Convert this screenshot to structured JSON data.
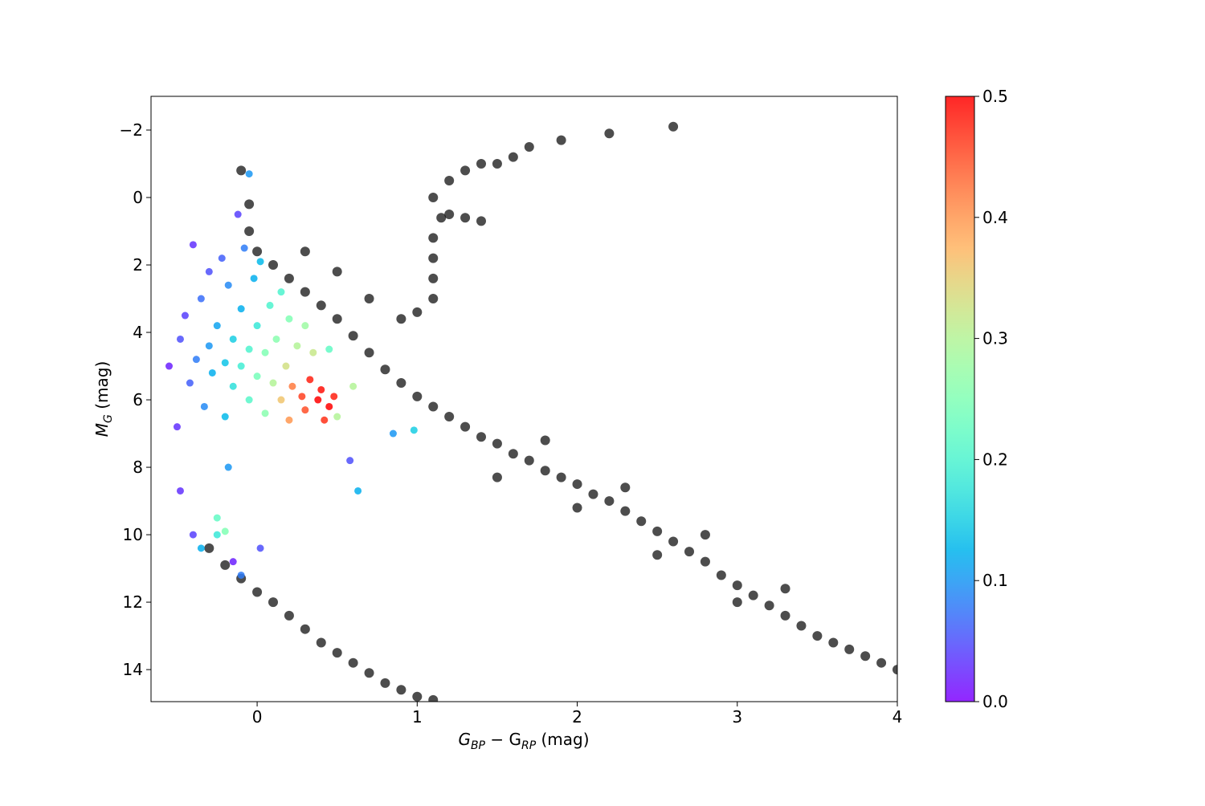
{
  "chart_data": {
    "type": "scatter",
    "xlabel": [
      "G",
      "BP",
      " − G",
      "RP",
      " (mag)"
    ],
    "ylabel": [
      "M",
      "G",
      " (mag)"
    ],
    "xlim": [
      -0.663,
      4
    ],
    "xticks": [
      0,
      1,
      2,
      3,
      4
    ],
    "ylim": [
      14.95,
      -3
    ],
    "yticks": [
      {
        "value": -2,
        "label": "−2"
      },
      0,
      2,
      4,
      6,
      8,
      10,
      12,
      14
    ],
    "colormap": "rainbow",
    "clim": [
      0,
      0.5
    ],
    "cticks": [
      {
        "value": 0,
        "label": "0.0"
      },
      0.1,
      0.2,
      0.3,
      0.4,
      0.5
    ],
    "series": [
      {
        "color": "#111111",
        "x": [
          -0.05,
          0,
          0.1,
          0.2,
          0.3,
          0.4,
          0.5,
          0.6,
          0.7,
          0.8,
          0.9,
          1.0,
          1.1,
          1.2,
          1.3,
          1.4,
          1.5,
          1.6,
          1.7,
          1.8,
          1.9,
          2.0,
          2.1,
          2.2,
          2.3,
          2.4,
          2.5,
          2.6,
          2.7,
          2.8,
          2.9,
          3.0,
          3.1,
          3.2,
          3.3,
          3.4,
          3.5,
          3.6,
          3.7,
          3.8,
          3.9,
          4.0,
          0.9,
          1.0,
          1.1,
          1.1,
          1.1,
          1.1,
          1.15,
          1.2,
          1.3,
          1.4,
          1.1,
          1.2,
          1.3,
          1.4,
          1.5,
          1.6,
          1.7,
          1.9,
          2.2,
          2.6,
          -0.1,
          -0.05,
          0.3,
          0.5,
          0.7,
          -0.3,
          -0.2,
          -0.1,
          0,
          0.1,
          0.2,
          0.3,
          0.4,
          0.5,
          0.6,
          0.7,
          0.8,
          0.9,
          1.0,
          1.1,
          1.5,
          2.0,
          2.5,
          3.0,
          1.8,
          2.3,
          2.8,
          3.3
        ],
        "y": [
          1.0,
          1.6,
          2.0,
          2.4,
          2.8,
          3.2,
          3.6,
          4.1,
          4.6,
          5.1,
          5.5,
          5.9,
          6.2,
          6.5,
          6.8,
          7.1,
          7.3,
          7.6,
          7.8,
          8.1,
          8.3,
          8.5,
          8.8,
          9.0,
          9.3,
          9.6,
          9.9,
          10.2,
          10.5,
          10.8,
          11.2,
          11.5,
          11.8,
          12.1,
          12.4,
          12.7,
          13.0,
          13.2,
          13.4,
          13.6,
          13.8,
          14.0,
          3.6,
          3.4,
          3.0,
          2.4,
          1.8,
          1.2,
          0.6,
          0.5,
          0.6,
          0.7,
          0,
          -0.5,
          -0.8,
          -1.0,
          -1.0,
          -1.2,
          -1.5,
          -1.7,
          -1.9,
          -2.1,
          -0.8,
          0.2,
          1.6,
          2.2,
          3.0,
          10.4,
          10.9,
          11.3,
          11.7,
          12.0,
          12.4,
          12.8,
          13.2,
          13.5,
          13.8,
          14.1,
          14.4,
          14.6,
          14.8,
          14.9,
          8.3,
          9.2,
          10.6,
          12.0,
          7.2,
          8.6,
          10.0,
          11.6
        ]
      },
      {
        "x": [
          -0.55,
          -0.5,
          -0.48,
          -0.45,
          -0.42,
          -0.4,
          -0.38,
          -0.35,
          -0.33,
          -0.3,
          -0.3,
          -0.28,
          -0.25,
          -0.22,
          -0.2,
          -0.2,
          -0.18,
          -0.15,
          -0.15,
          -0.12,
          -0.1,
          -0.1,
          -0.08,
          -0.05,
          -0.05,
          -0.05,
          -0.02,
          0,
          0,
          0.02,
          0.05,
          0.05,
          0.08,
          0.1,
          0.12,
          0.15,
          0.15,
          0.18,
          0.2,
          0.2,
          0.22,
          0.25,
          0.28,
          0.3,
          0.3,
          0.33,
          0.35,
          0.38,
          0.4,
          0.42,
          0.45,
          0.48,
          0.5,
          0.45,
          0.6,
          0.63,
          0.58,
          0.85,
          0.98,
          -0.18,
          -0.48,
          -0.4,
          -0.25,
          -0.2,
          -0.15,
          -0.1,
          0.02,
          -0.25,
          -0.35
        ],
        "y": [
          5.0,
          6.8,
          4.2,
          3.5,
          5.5,
          1.4,
          4.8,
          3.0,
          6.2,
          2.2,
          4.4,
          5.2,
          3.8,
          1.8,
          4.9,
          6.5,
          2.6,
          4.2,
          5.6,
          0.5,
          3.3,
          5.0,
          1.5,
          -0.7,
          4.5,
          6.0,
          2.4,
          3.8,
          5.3,
          1.9,
          4.6,
          6.4,
          3.2,
          5.5,
          4.2,
          2.8,
          6.0,
          5.0,
          3.6,
          6.6,
          5.6,
          4.4,
          5.9,
          3.8,
          6.3,
          5.4,
          4.6,
          6.0,
          5.7,
          6.6,
          6.2,
          5.9,
          6.5,
          4.5,
          5.6,
          8.7,
          7.8,
          7.0,
          6.9,
          8.0,
          8.7,
          10.0,
          10.0,
          9.9,
          10.8,
          11.2,
          10.4,
          9.5,
          10.4
        ],
        "c": [
          0.02,
          0.03,
          0.05,
          0.04,
          0.06,
          0.03,
          0.08,
          0.07,
          0.09,
          0.05,
          0.1,
          0.12,
          0.11,
          0.06,
          0.14,
          0.13,
          0.09,
          0.15,
          0.17,
          0.04,
          0.12,
          0.19,
          0.08,
          0.1,
          0.2,
          0.21,
          0.12,
          0.18,
          0.24,
          0.13,
          0.25,
          0.26,
          0.2,
          0.3,
          0.26,
          0.2,
          0.36,
          0.33,
          0.25,
          0.4,
          0.42,
          0.3,
          0.46,
          0.28,
          0.45,
          0.48,
          0.32,
          0.5,
          0.49,
          0.47,
          0.5,
          0.48,
          0.3,
          0.22,
          0.3,
          0.12,
          0.05,
          0.1,
          0.15,
          0.1,
          0.03,
          0.04,
          0.18,
          0.25,
          0.02,
          0.08,
          0.05,
          0.22,
          0.12
        ]
      }
    ]
  }
}
